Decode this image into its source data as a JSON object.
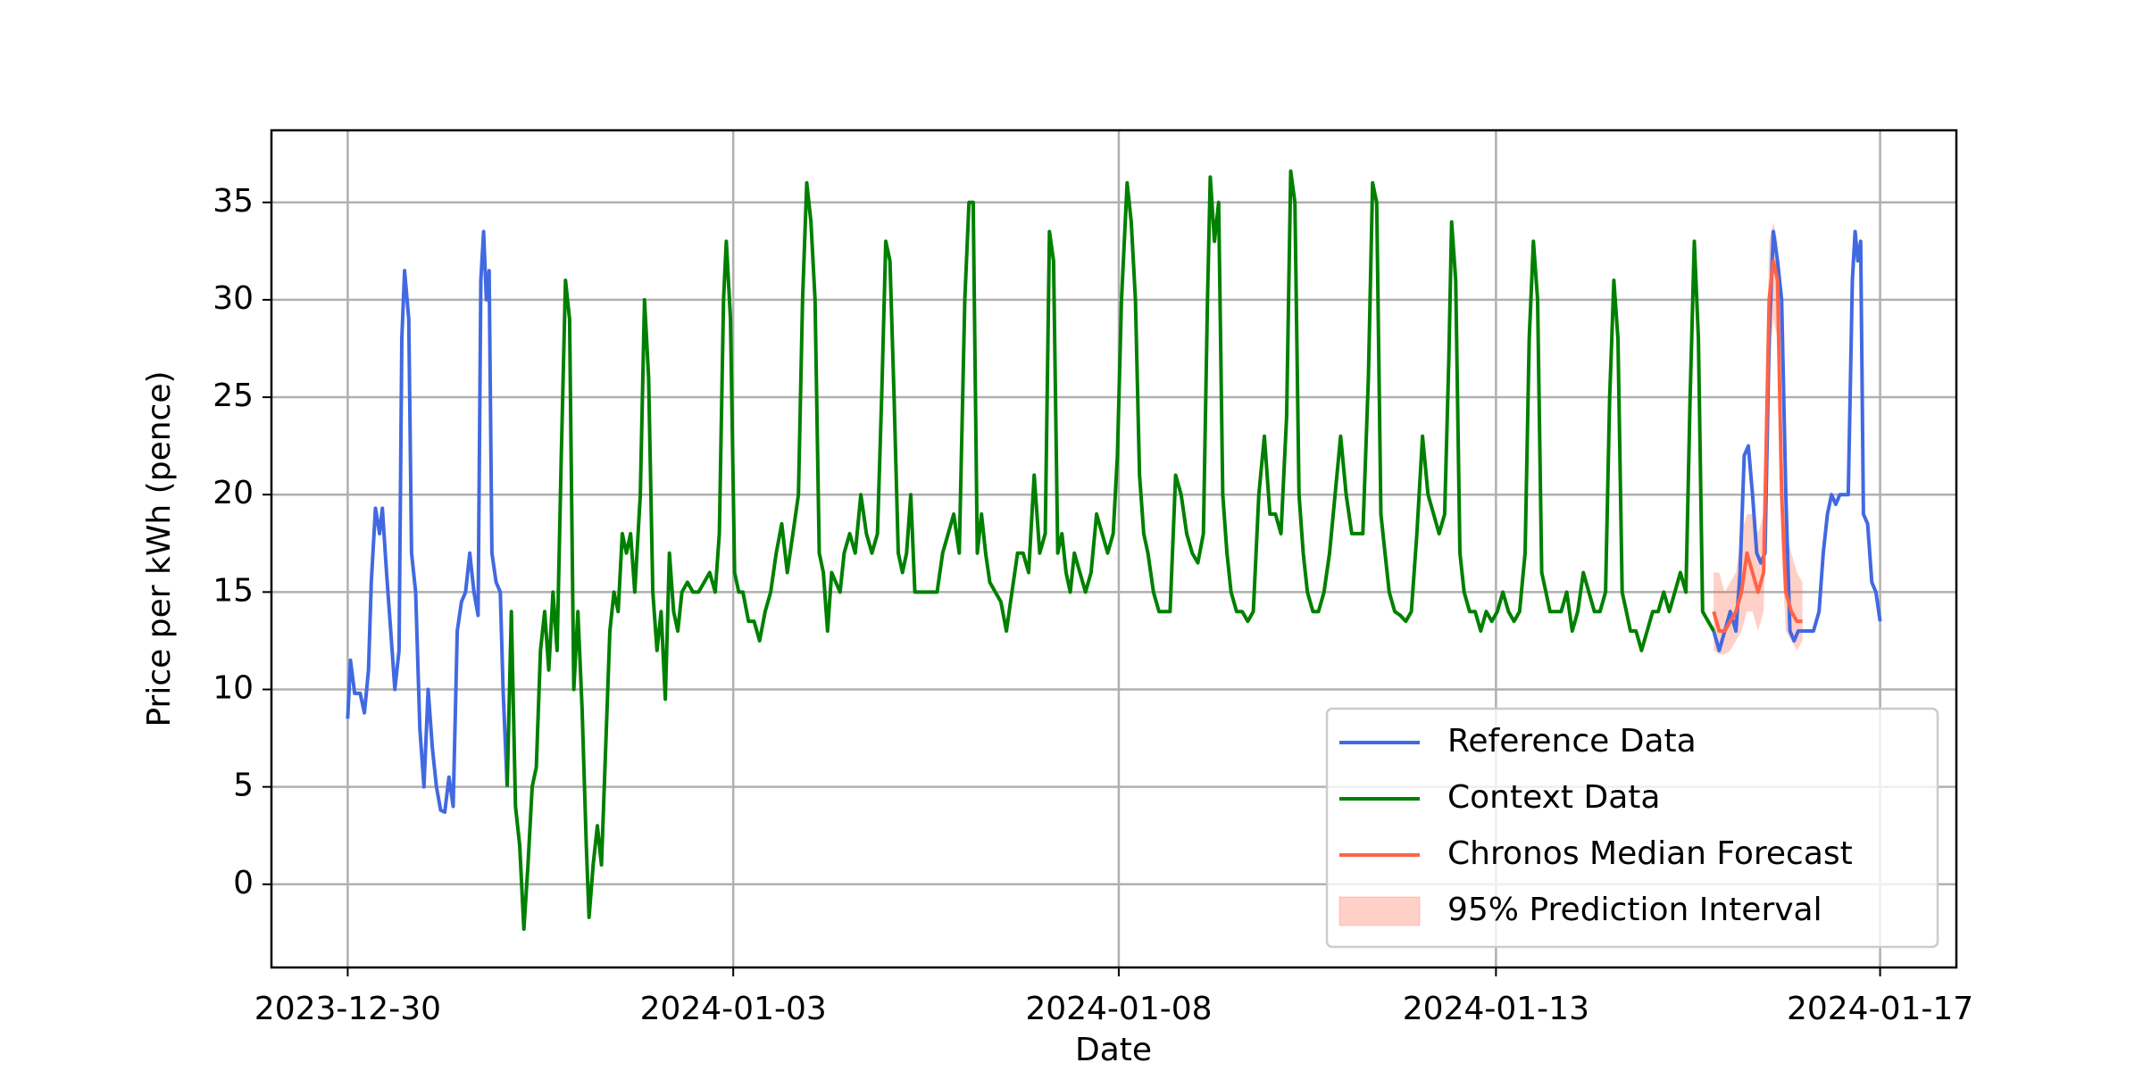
{
  "chart_data": {
    "type": "line",
    "xlabel": "Date",
    "ylabel": "Price per kWh (pence)",
    "xlim": [
      -55,
      1160
    ],
    "xticks": [
      {
        "value": 0,
        "label": "2023-12-30"
      },
      {
        "value": 278,
        "label": "2024-01-03"
      },
      {
        "value": 556,
        "label": "2024-01-08"
      },
      {
        "value": 828,
        "label": "2024-01-13"
      },
      {
        "value": 1105,
        "label": "2024-01-17"
      }
    ],
    "ylim": [
      -4.27,
      38.7
    ],
    "yticks": [
      0,
      5,
      10,
      15,
      20,
      25,
      30,
      35
    ],
    "grid": true,
    "legend": "lower right",
    "series": [
      {
        "name": "Reference Data",
        "color": "#4169e1",
        "x": [
          0,
          2,
          5,
          9,
          12,
          15,
          17,
          20,
          23,
          25,
          28,
          31,
          34,
          37,
          39,
          41,
          44,
          46,
          49,
          52,
          55,
          58,
          61,
          64,
          67,
          70,
          73,
          76,
          79,
          82,
          85,
          88,
          91,
          94,
          96,
          98,
          100,
          102,
          104,
          107,
          110,
          112,
          115,
          null,
          985,
          989,
          993,
          997,
          1001,
          1004,
          1007,
          1010,
          1013,
          1016,
          1019,
          1022,
          1025,
          1028,
          1031,
          1034,
          1037,
          1040,
          1043,
          1046,
          1049,
          1053,
          1057,
          1061,
          1064,
          1067,
          1070,
          1073,
          1076,
          1079,
          1082,
          1085,
          1087,
          1089,
          1091,
          1093,
          1096,
          1099,
          1102,
          1105
        ],
        "values": [
          8.5,
          11.5,
          9.8,
          9.8,
          8.8,
          11,
          15.5,
          19.3,
          18,
          19.3,
          16,
          13,
          10,
          12,
          28,
          31.5,
          29,
          17,
          15,
          8,
          5,
          10,
          7,
          5,
          3.8,
          3.7,
          5.5,
          4,
          13,
          14.5,
          15,
          17,
          15,
          13.8,
          31,
          33.5,
          30,
          31.5,
          17,
          15.5,
          15,
          10,
          5,
          null,
          13,
          12,
          13,
          14,
          13,
          16,
          22,
          22.5,
          20,
          17,
          16.5,
          17,
          28,
          33.5,
          32,
          30,
          20,
          13,
          12.5,
          13,
          13,
          13,
          13,
          14,
          17,
          19,
          20,
          19.5,
          20,
          20,
          20,
          31,
          33.5,
          32,
          33,
          19,
          18.5,
          15.5,
          15,
          13.5
        ]
      },
      {
        "name": "Context Data",
        "color": "#008000",
        "x": [
          115,
          118,
          121,
          124,
          127,
          130,
          133,
          136,
          139,
          142,
          145,
          148,
          151,
          154,
          157,
          160,
          163,
          166,
          169,
          172,
          174,
          177,
          180,
          183,
          186,
          189,
          192,
          195,
          198,
          201,
          204,
          207,
          211,
          214,
          217,
          220,
          223,
          226,
          229,
          232,
          235,
          238,
          241,
          245,
          249,
          253,
          257,
          261,
          265,
          268,
          271,
          273,
          276,
          279,
          282,
          285,
          289,
          293,
          297,
          301,
          305,
          309,
          313,
          317,
          321,
          325,
          328,
          331,
          334,
          337,
          340,
          343,
          346,
          349,
          352,
          355,
          358,
          362,
          366,
          370,
          374,
          378,
          382,
          385,
          388,
          391,
          394,
          397,
          400,
          403,
          406,
          409,
          413,
          417,
          421,
          425,
          429,
          433,
          437,
          441,
          445,
          448,
          451,
          454,
          457,
          460,
          463,
          467,
          471,
          475,
          479,
          483,
          487,
          491,
          495,
          499,
          503,
          506,
          509,
          512,
          515,
          518,
          521,
          524,
          528,
          532,
          536,
          540,
          544,
          548,
          552,
          555,
          558,
          562,
          565,
          568,
          571,
          574,
          577,
          581,
          585,
          589,
          593,
          597,
          601,
          605,
          609,
          613,
          617,
          620,
          622,
          625,
          628,
          631,
          634,
          637,
          641,
          645,
          649,
          653,
          657,
          661,
          665,
          669,
          673,
          677,
          680,
          683,
          686,
          689,
          692,
          696,
          700,
          704,
          708,
          712,
          716,
          720,
          724,
          728,
          732,
          736,
          739,
          742,
          745,
          748,
          751,
          755,
          759,
          763,
          767,
          771,
          775,
          779,
          783,
          787,
          791,
          794,
          796,
          799,
          802,
          805,
          809,
          813,
          817,
          821,
          825,
          829,
          833,
          837,
          841,
          845,
          849,
          852,
          855,
          858,
          861,
          864,
          867,
          871,
          875,
          879,
          883,
          887,
          891,
          895,
          899,
          903,
          907,
          910,
          913,
          916,
          919,
          922,
          925,
          929,
          933,
          937,
          941,
          945,
          949,
          953,
          957,
          961,
          965,
          968,
          971,
          974,
          977,
          981,
          985
        ],
        "values": [
          5,
          14,
          4,
          2,
          -2.3,
          1,
          5,
          6,
          12,
          14,
          11,
          15,
          12,
          22,
          31,
          29,
          10,
          14,
          9,
          2,
          -1.7,
          1,
          3,
          1,
          7,
          13,
          15,
          14,
          18,
          17,
          18,
          15,
          20,
          30,
          26,
          15,
          12,
          14,
          9.5,
          17,
          14,
          13,
          15,
          15.5,
          15,
          15,
          15.5,
          16,
          15,
          18,
          30,
          33,
          29,
          16,
          15,
          15,
          13.5,
          13.5,
          12.5,
          14,
          15,
          17,
          18.5,
          16,
          18,
          20,
          30,
          36,
          34,
          30,
          17,
          16,
          13,
          16,
          15.5,
          15,
          17,
          18,
          17,
          20,
          18,
          17,
          18,
          25,
          33,
          32,
          25,
          17,
          16,
          17,
          20,
          15,
          15,
          15,
          15,
          15,
          17,
          18,
          19,
          17,
          30,
          35,
          35,
          17,
          19,
          17,
          15.5,
          15,
          14.5,
          13,
          15,
          17,
          17,
          16,
          21,
          17,
          18,
          33.5,
          32,
          17,
          18,
          16,
          15,
          17,
          16,
          15,
          16,
          19,
          18,
          17,
          18,
          22,
          30,
          36,
          34,
          30,
          21,
          18,
          17,
          15,
          14,
          14,
          14,
          21,
          20,
          18,
          17,
          16.5,
          18,
          30,
          36.3,
          33,
          35,
          20,
          17,
          15,
          14,
          14,
          13.5,
          14,
          20,
          23,
          19,
          19,
          18,
          24,
          36.6,
          35,
          20,
          17,
          15,
          14,
          14,
          15,
          17,
          20,
          23,
          20,
          18,
          18,
          18,
          26,
          36,
          35,
          19,
          17,
          15,
          14,
          13.8,
          13.5,
          14,
          18,
          23,
          20,
          19,
          18,
          19,
          27,
          34,
          31,
          17,
          15,
          14,
          14,
          13,
          14,
          13.5,
          14,
          15,
          14,
          13.5,
          14,
          17,
          28,
          33,
          30,
          16,
          15,
          14,
          14,
          14,
          15,
          13,
          14,
          16,
          15,
          14,
          14,
          15,
          25,
          31,
          28,
          15,
          14,
          13,
          13,
          12,
          13,
          14,
          14,
          15,
          14,
          15,
          16,
          15,
          25,
          33,
          28,
          14,
          13.5,
          13
        ]
      },
      {
        "name": "Chronos Median Forecast",
        "color": "#ff6347",
        "x": [
          985,
          989,
          993,
          997,
          1001,
          1005,
          1009,
          1013,
          1017,
          1021,
          1025,
          1028,
          1031,
          1034,
          1037,
          1041,
          1045,
          1049
        ],
        "values": [
          14,
          13,
          13,
          13.5,
          14,
          15,
          17,
          16,
          15,
          16,
          30,
          32,
          31,
          20,
          15,
          14,
          13.5,
          13.5
        ]
      }
    ],
    "interval": {
      "name": "95% Prediction Interval",
      "color": "#ff6347",
      "x": [
        985,
        989,
        993,
        997,
        1001,
        1005,
        1009,
        1013,
        1017,
        1021,
        1025,
        1028,
        1031,
        1034,
        1037,
        1041,
        1045,
        1049
      ],
      "lower": [
        12,
        11.8,
        11.8,
        12,
        12.5,
        13,
        14,
        14,
        13,
        14,
        26,
        29,
        28,
        17,
        13,
        12.5,
        12,
        12.5
      ],
      "upper": [
        16,
        16,
        15,
        15.5,
        16,
        18,
        19,
        19,
        18,
        19,
        33,
        34,
        33,
        23,
        18,
        17,
        16,
        15.5
      ]
    }
  }
}
